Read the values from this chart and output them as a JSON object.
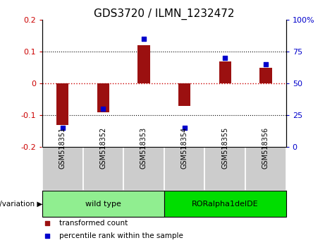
{
  "title": "GDS3720 / ILMN_1232472",
  "samples": [
    "GSM518351",
    "GSM518352",
    "GSM518353",
    "GSM518354",
    "GSM518355",
    "GSM518356"
  ],
  "transformed_count": [
    -0.13,
    -0.09,
    0.12,
    -0.07,
    0.07,
    0.05
  ],
  "percentile_rank": [
    15,
    30,
    85,
    15,
    70,
    65
  ],
  "ylim_left": [
    -0.2,
    0.2
  ],
  "ylim_right": [
    0,
    100
  ],
  "yticks_left": [
    -0.2,
    -0.1,
    0,
    0.1,
    0.2
  ],
  "yticks_right": [
    0,
    25,
    50,
    75,
    100
  ],
  "ytick_labels_right": [
    "0",
    "25",
    "50",
    "75",
    "100%"
  ],
  "bar_color": "#9B1010",
  "dot_color": "#0000CC",
  "zero_line_color": "#cc0000",
  "grid_color": "#000000",
  "groups": [
    {
      "label": "wild type",
      "samples": [
        0,
        1,
        2
      ],
      "color": "#90EE90"
    },
    {
      "label": "RORalpha1delDE",
      "samples": [
        3,
        4,
        5
      ],
      "color": "#00DD00"
    }
  ],
  "legend_items": [
    {
      "label": "transformed count",
      "color": "#9B1010"
    },
    {
      "label": "percentile rank within the sample",
      "color": "#0000CC"
    }
  ],
  "axis_label_color_left": "#cc0000",
  "axis_label_color_right": "#0000cc",
  "bar_width": 0.3,
  "sample_box_color": "#cccccc",
  "genotype_label": "genotype/variation"
}
